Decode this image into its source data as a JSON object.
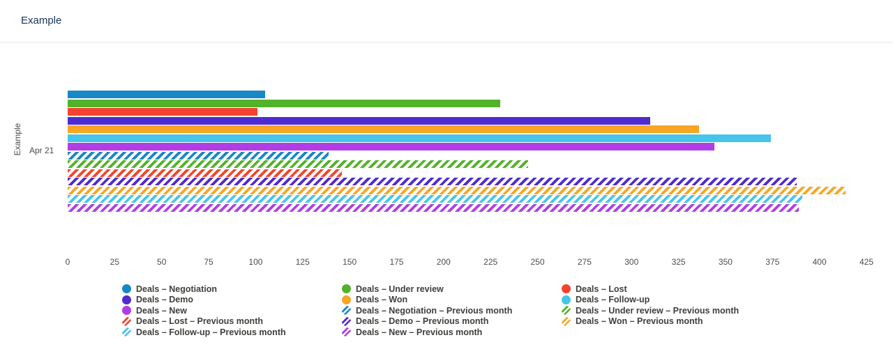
{
  "header": {
    "title": "Example"
  },
  "chart_data": {
    "type": "bar",
    "orientation": "horizontal",
    "title": "Example",
    "ylabel": "Example",
    "xlabel": "",
    "categories": [
      "Apr 21"
    ],
    "xlim": [
      0,
      425
    ],
    "x_ticks": [
      0,
      25,
      50,
      75,
      100,
      125,
      150,
      175,
      200,
      225,
      250,
      275,
      300,
      325,
      350,
      375,
      400,
      425
    ],
    "grid": false,
    "legend_position": "bottom",
    "series": [
      {
        "name": "Deals – Negotiation",
        "values": [
          105
        ],
        "color": "#1787c5",
        "pattern": "solid"
      },
      {
        "name": "Deals – Under review",
        "values": [
          230
        ],
        "color": "#52b22a",
        "pattern": "solid"
      },
      {
        "name": "Deals – Lost",
        "values": [
          101
        ],
        "color": "#f5432d",
        "pattern": "solid"
      },
      {
        "name": "Deals – Demo",
        "values": [
          310
        ],
        "color": "#4f2bd0",
        "pattern": "solid"
      },
      {
        "name": "Deals – Won",
        "values": [
          336
        ],
        "color": "#f6a623",
        "pattern": "solid"
      },
      {
        "name": "Deals – Follow-up",
        "values": [
          374
        ],
        "color": "#45c5ea",
        "pattern": "solid"
      },
      {
        "name": "Deals – New",
        "values": [
          344
        ],
        "color": "#b13de4",
        "pattern": "solid"
      },
      {
        "name": "Deals – Negotiation – Previous month",
        "values": [
          139
        ],
        "color": "#1787c5",
        "pattern": "hatched"
      },
      {
        "name": "Deals – Under review – Previous month",
        "values": [
          245
        ],
        "color": "#52b22a",
        "pattern": "hatched"
      },
      {
        "name": "Deals – Lost – Previous month",
        "values": [
          146
        ],
        "color": "#f5432d",
        "pattern": "hatched"
      },
      {
        "name": "Deals – Demo – Previous month",
        "values": [
          388
        ],
        "color": "#4f2bd0",
        "pattern": "hatched"
      },
      {
        "name": "Deals – Won – Previous month",
        "values": [
          414
        ],
        "color": "#f6a623",
        "pattern": "hatched"
      },
      {
        "name": "Deals – Follow-up – Previous month",
        "values": [
          391
        ],
        "color": "#45c5ea",
        "pattern": "hatched"
      },
      {
        "name": "Deals – New – Previous month",
        "values": [
          389
        ],
        "color": "#b13de4",
        "pattern": "hatched"
      }
    ]
  }
}
